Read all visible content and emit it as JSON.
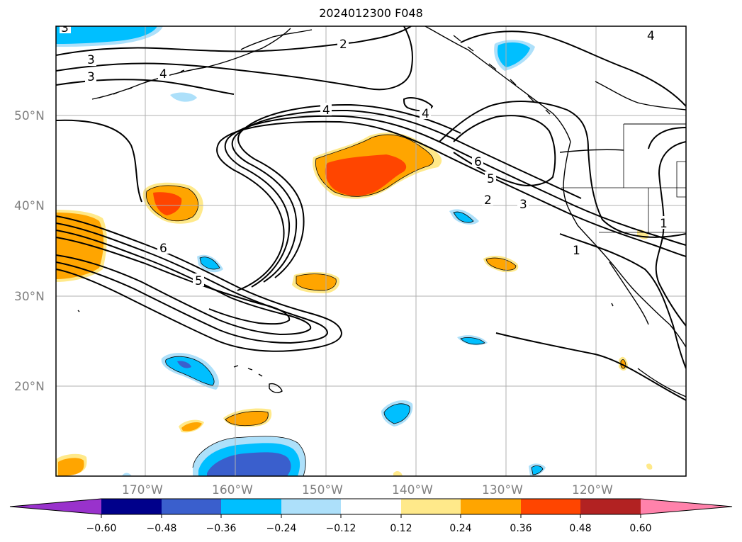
{
  "title": "2024012300 F048",
  "lat_labels": [
    "50°N",
    "40°N",
    "30°N",
    "20°N"
  ],
  "lon_labels": [
    "170°W",
    "160°W",
    "150°W",
    "140°W",
    "130°W",
    "120°W"
  ],
  "colorbar": {
    "tick_labels": [
      "−0.60",
      "−0.48",
      "−0.36",
      "−0.24",
      "−0.12",
      "0.12",
      "0.24",
      "0.36",
      "0.48",
      "0.60"
    ],
    "colors": [
      "#9932CC",
      "#00008B",
      "#3A5FCD",
      "#00BFFF",
      "#ADE0FA",
      "#FFFFFF",
      "#FFE98A",
      "#FFA500",
      "#FF4500",
      "#B22222",
      "#FF82AB"
    ]
  },
  "contour_labels": [
    "3",
    "3",
    "3",
    "4",
    "2",
    "4",
    "4",
    "4",
    "6",
    "5",
    "2",
    "3",
    "1",
    "1",
    "6",
    "5"
  ]
}
